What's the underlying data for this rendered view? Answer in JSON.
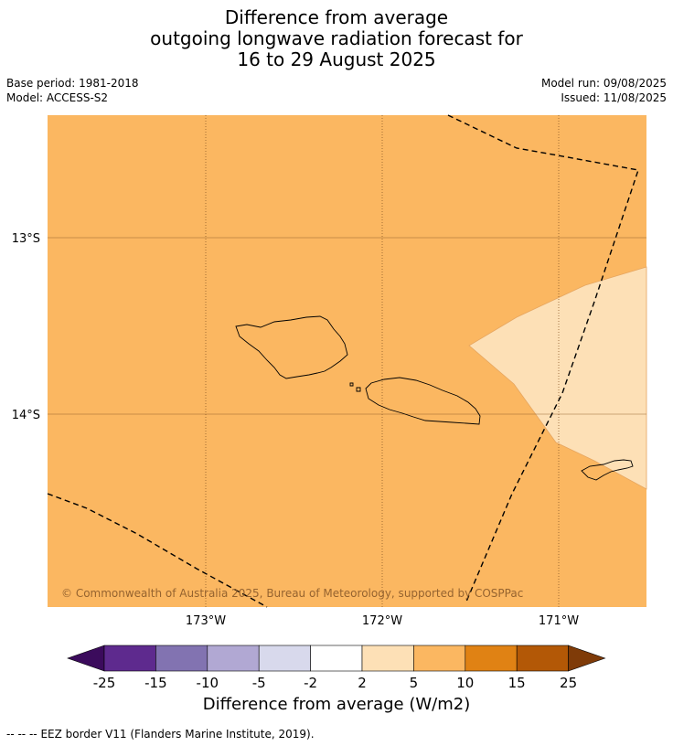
{
  "title": {
    "line1": "Difference from average",
    "line2": "outgoing longwave radiation forecast for",
    "line3": "16 to 29 August 2025"
  },
  "meta": {
    "base_period": "Base period: 1981-2018",
    "model": "Model: ACCESS-S2",
    "model_run": "Model run: 09/08/2025",
    "issued": "Issued: 11/08/2025"
  },
  "map": {
    "lat_labels": [
      "13°S",
      "14°S"
    ],
    "lon_labels": [
      "173°W",
      "172°W",
      "171°W"
    ],
    "copyright": "© Commonwealth of Australia 2025, Bureau of Meteorology, supported by COSPPac",
    "colors": {
      "background_anomaly": "#fbb761",
      "light_region": "#fde0b6",
      "coast": "#000000",
      "grid": "#8c5a2a"
    }
  },
  "colorbar": {
    "label": "Difference from average (W/m2)",
    "ticks": [
      "-25",
      "-15",
      "-10",
      "-5",
      "-2",
      "2",
      "5",
      "10",
      "15",
      "25"
    ],
    "colors": [
      "#3b0b5c",
      "#5e2a8e",
      "#8273b1",
      "#b1a8d3",
      "#d8d9ec",
      "#ffffff",
      "#fde0b6",
      "#fbb761",
      "#e08214",
      "#b35806",
      "#7f3b08"
    ]
  },
  "footer": {
    "legend_symbol": "--  --  --",
    "legend_text": "EEZ border V11 (Flanders Marine Institute, 2019)."
  }
}
